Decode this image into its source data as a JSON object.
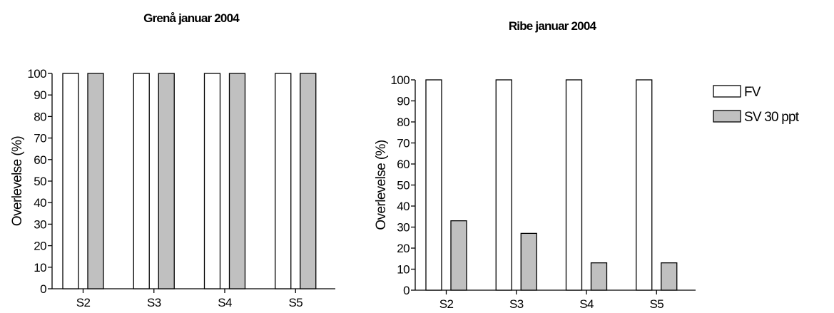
{
  "chart_data": [
    {
      "type": "bar",
      "title": "Grenå januar 2004",
      "xlabel": "",
      "ylabel": "Overlevelse (%)",
      "ylim": [
        0,
        100
      ],
      "yticks": [
        0,
        10,
        20,
        30,
        40,
        50,
        60,
        70,
        80,
        90,
        100
      ],
      "categories": [
        "S2",
        "S3",
        "S4",
        "S5"
      ],
      "series": [
        {
          "name": "FV",
          "color": "#ffffff",
          "values": [
            100,
            100,
            100,
            100
          ]
        },
        {
          "name": "SV 30 ppt",
          "color": "#c0c0c0",
          "values": [
            100,
            100,
            100,
            100
          ]
        }
      ],
      "legend": "none"
    },
    {
      "type": "bar",
      "title": "Ribe januar 2004",
      "xlabel": "",
      "ylabel": "Overlevelse (%)",
      "ylim": [
        0,
        100
      ],
      "yticks": [
        0,
        10,
        20,
        30,
        40,
        50,
        60,
        70,
        80,
        90,
        100
      ],
      "categories": [
        "S2",
        "S3",
        "S4",
        "S5"
      ],
      "series": [
        {
          "name": "FV",
          "color": "#ffffff",
          "values": [
            100,
            100,
            100,
            100
          ]
        },
        {
          "name": "SV 30 ppt",
          "color": "#c0c0c0",
          "values": [
            33,
            27,
            13,
            13
          ]
        }
      ],
      "legend": "right"
    }
  ]
}
